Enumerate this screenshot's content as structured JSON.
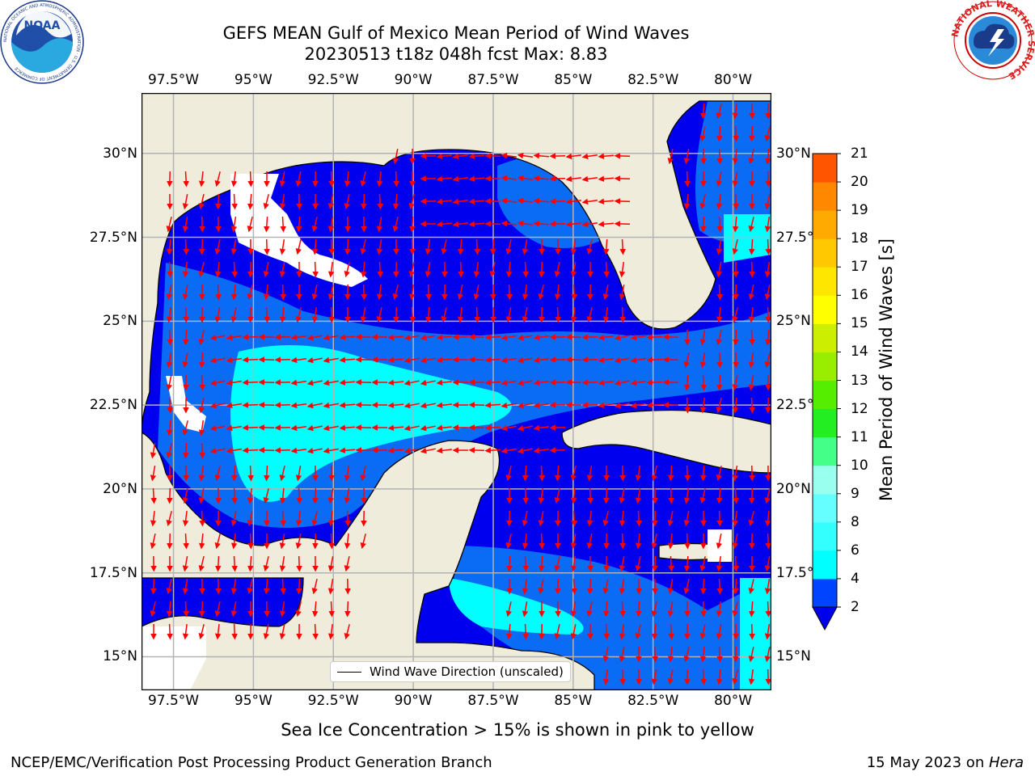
{
  "title": {
    "line1": "GEFS MEAN Gulf of Mexico Mean Period of Wind Waves",
    "line2": "20230513 t18z 048h fcst   Max: 8.83"
  },
  "map": {
    "lon_range": [
      -98.5,
      -78.8
    ],
    "lat_range": [
      14,
      31.8
    ],
    "lon_ticks": [
      "97.5°W",
      "95°W",
      "92.5°W",
      "90°W",
      "87.5°W",
      "85°W",
      "82.5°W",
      "80°W"
    ],
    "lat_ticks_left": [
      "30°N",
      "27.5°N",
      "25°N",
      "22.5°N",
      "20°N",
      "17.5°N",
      "15°N"
    ],
    "lat_ticks_right": [
      "30°N",
      "27.5°",
      "25°N",
      "22.5°",
      "20°N",
      "17.5°",
      "15°N"
    ],
    "colors": {
      "land": "#efecdc",
      "grid": "#b3b3b3",
      "arrow": "#ff0000",
      "coast": "#000000"
    }
  },
  "colorbar": {
    "label": "Mean Period of Wind Waves [s]",
    "ticks": [
      "2",
      "4",
      "6",
      "8",
      "9",
      "10",
      "11",
      "12",
      "13",
      "14",
      "15",
      "16",
      "17",
      "18",
      "19",
      "20",
      "21"
    ],
    "colors": [
      "#0044ff",
      "#00ffff",
      "#33ffff",
      "#66ffff",
      "#99ffee",
      "#44ff88",
      "#22ee22",
      "#55ee00",
      "#99ee00",
      "#ccee00",
      "#ffff00",
      "#ffe600",
      "#ffc800",
      "#ffaa00",
      "#ff8800",
      "#ff5500",
      "#ff2200",
      "#ff0000"
    ],
    "extend_color": "#0000ee"
  },
  "legend": {
    "label": "Wind Wave Direction (unscaled)"
  },
  "note": "Sea Ice Concentration > 15% is shown in pink to yellow",
  "footer": {
    "left": "NCEP/EMC/Verification Post Processing Product Generation Branch",
    "right_prefix": "15 May 2023 on ",
    "right_italic": "Hera"
  },
  "logos": {
    "noaa_text": "NOAA",
    "noaa_ring": "NATIONAL OCEANIC AND ATMOSPHERIC ADMINISTRATION · U.S. DEPARTMENT OF COMMERCE",
    "nws_ring": "NATIONAL WEATHER SERVICE"
  }
}
